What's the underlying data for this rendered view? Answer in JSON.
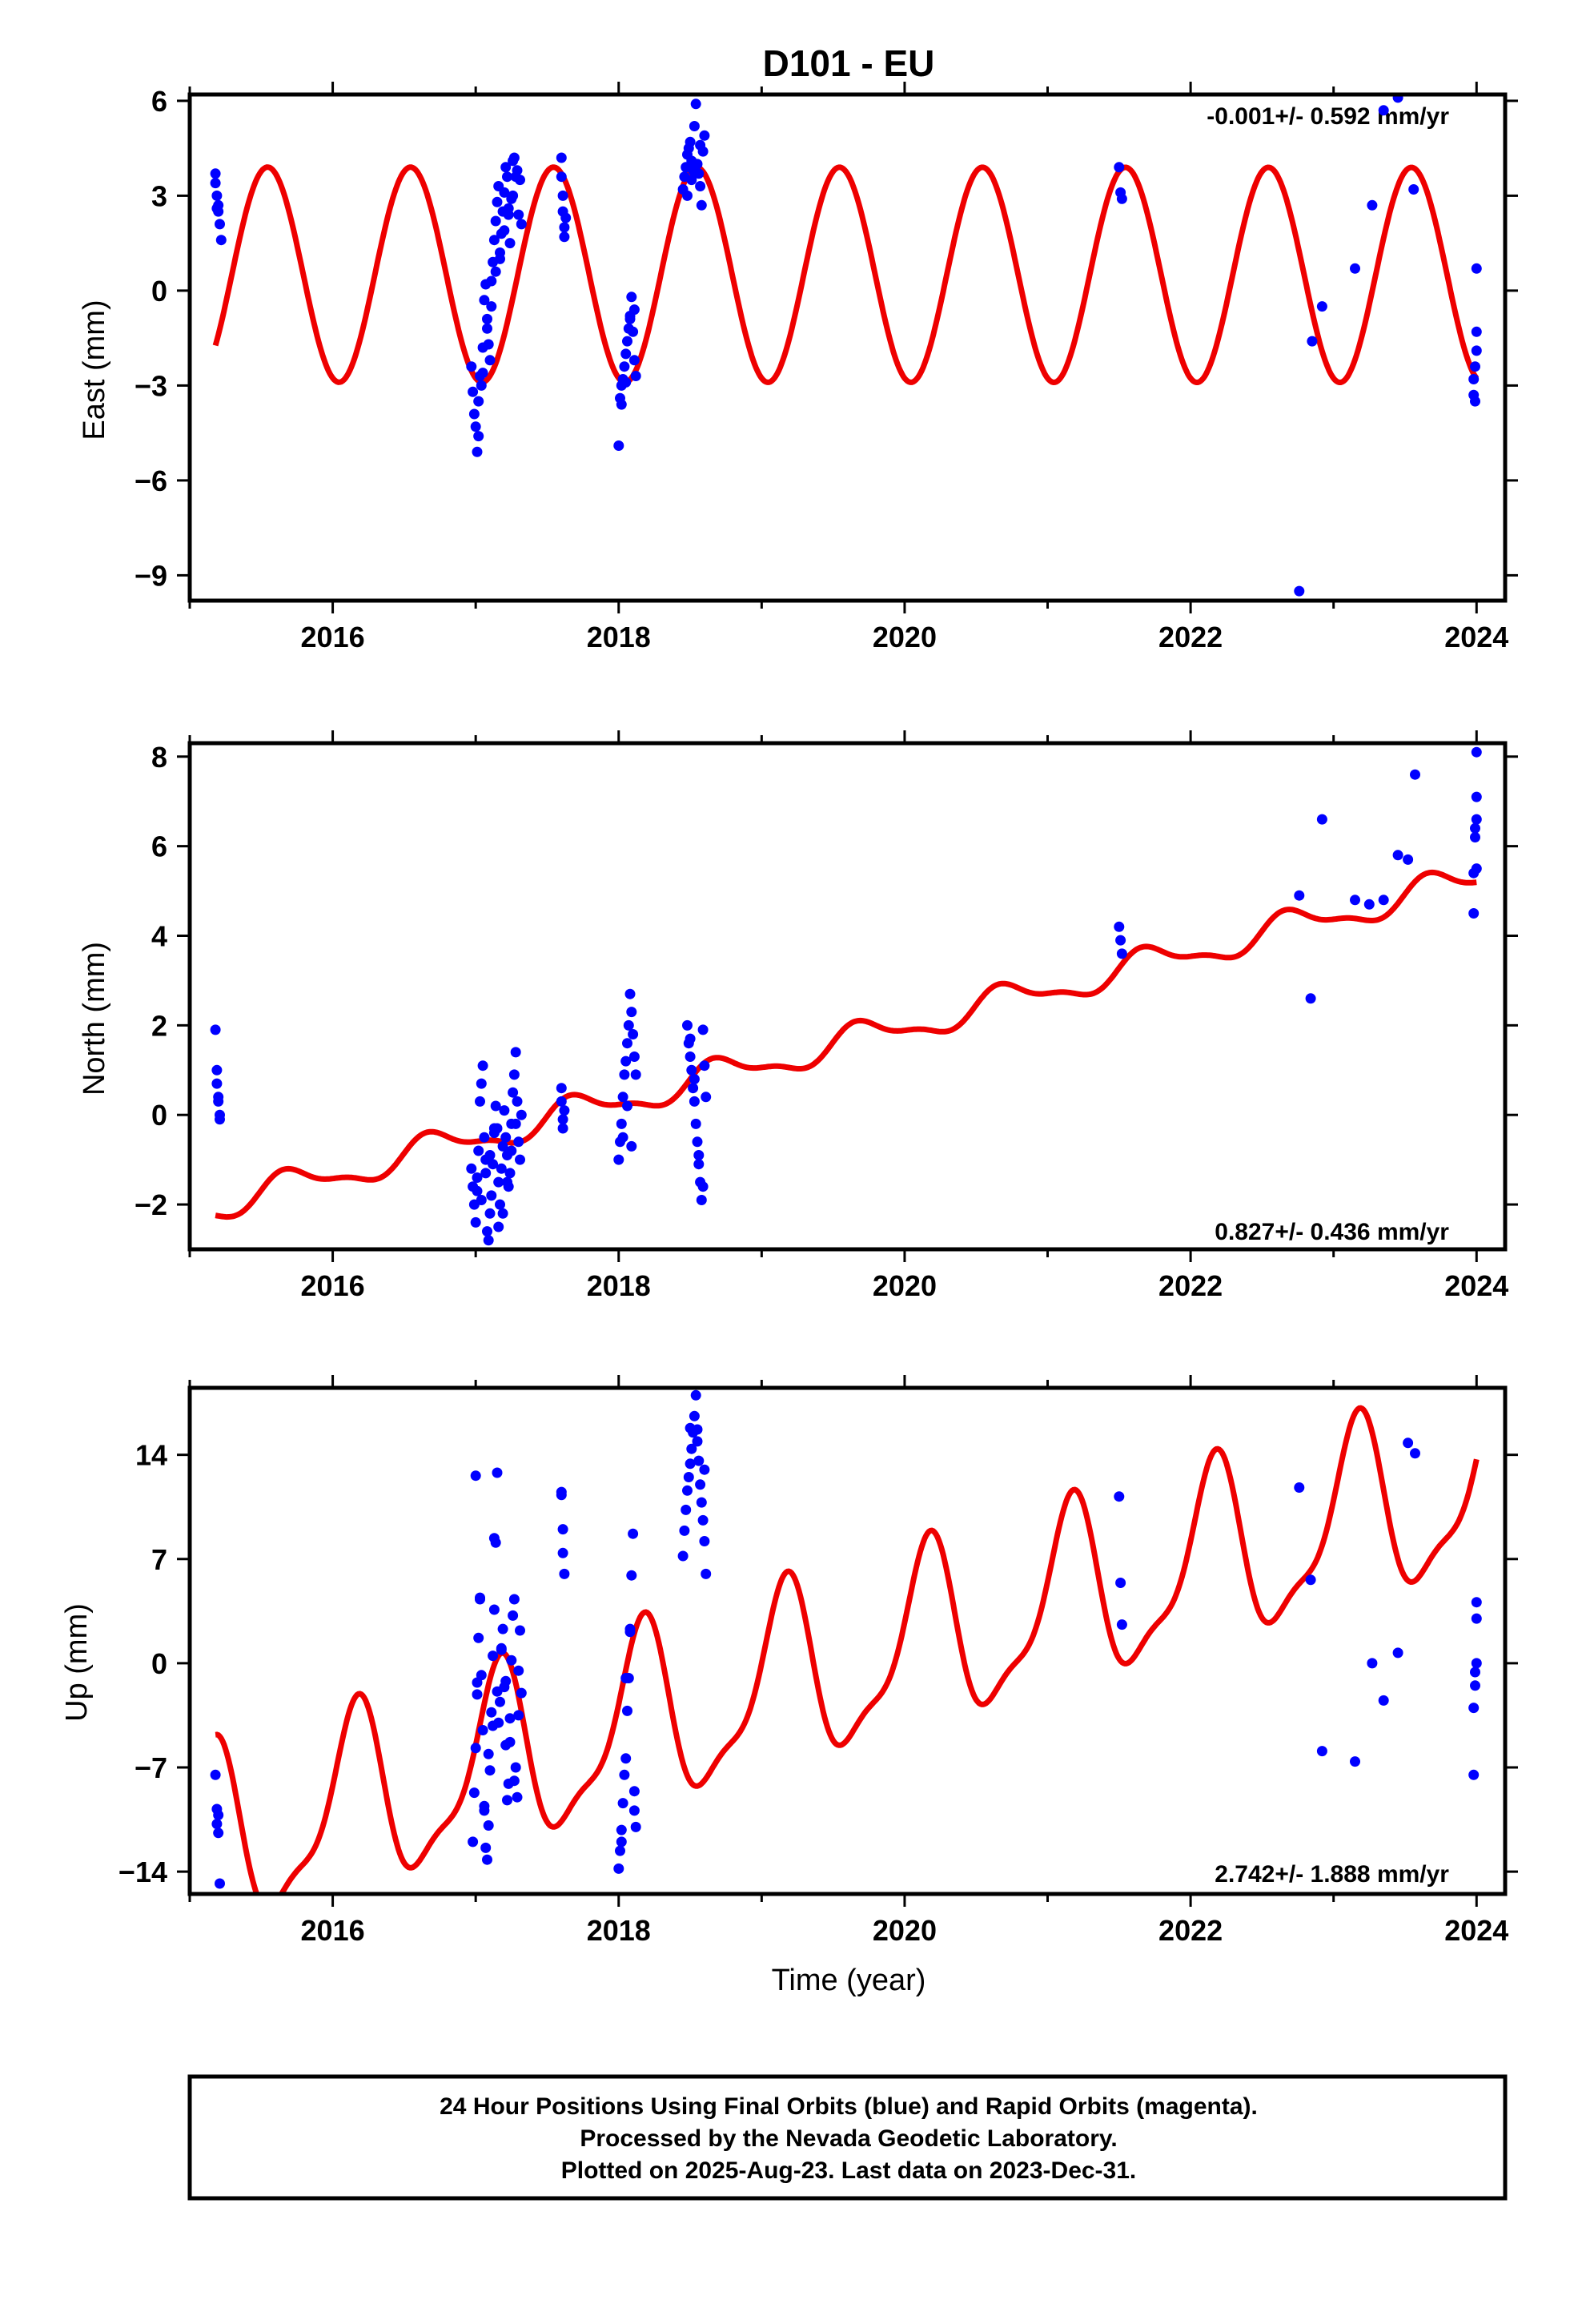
{
  "title": "D101 - EU",
  "xlabel": "Time (year)",
  "footer": [
    "24 Hour Positions Using Final Orbits (blue) and Rapid Orbits (magenta).",
    "Processed by the Nevada Geodetic Laboratory.",
    "Plotted on 2025-Aug-23. Last data on 2023-Dec-31."
  ],
  "colors": {
    "final_orbits": "#0000ff",
    "model": "#ee0000",
    "frame": "#000000"
  },
  "chart_data": [
    {
      "type": "scatter",
      "panel": "east",
      "ylabel": "East (mm)",
      "rate_text": "-0.001+/- 0.592 mm/yr",
      "xlim": [
        2015.0,
        2024.2
      ],
      "ylim": [
        -9.8,
        6.2
      ],
      "xticks": [
        2016,
        2018,
        2020,
        2022,
        2024
      ],
      "yticks": [
        6,
        3,
        0,
        -3,
        -6,
        -9
      ],
      "ytick_labels": [
        "6",
        "3",
        "0",
        "−3",
        "−6",
        "−9"
      ],
      "model": {
        "rate": -0.001,
        "offset": 0.5,
        "annual_amp": 3.4,
        "annual_phase": -1.85,
        "semiannual_amp": 0.0,
        "semiannual_phase": 0.0
      },
      "series": [
        {
          "x": [
            2015.18,
            2015.18,
            2015.19,
            2015.19,
            2015.2,
            2015.2,
            2015.21,
            2015.22,
            2016.97,
            2016.98,
            2016.99,
            2017.0,
            2017.01,
            2017.02,
            2017.03,
            2017.04,
            2017.05,
            2017.06,
            2017.07,
            2017.08,
            2017.09,
            2017.1,
            2017.11,
            2017.12,
            2017.13,
            2017.14,
            2017.15,
            2017.16,
            2017.17,
            2017.18,
            2017.19,
            2017.2,
            2017.21,
            2017.22,
            2017.23,
            2017.24,
            2017.25,
            2017.26,
            2017.27,
            2017.28,
            2017.29,
            2017.3,
            2017.31,
            2017.32,
            2017.02,
            2017.05,
            2017.08,
            2017.11,
            2017.14,
            2017.17,
            2017.2,
            2017.23,
            2017.26,
            2017.6,
            2017.6,
            2017.61,
            2017.61,
            2017.62,
            2017.62,
            2017.63,
            2018.0,
            2018.01,
            2018.02,
            2018.03,
            2018.04,
            2018.05,
            2018.06,
            2018.07,
            2018.08,
            2018.09,
            2018.1,
            2018.11,
            2018.12,
            2018.02,
            2018.05,
            2018.08,
            2018.11,
            2018.45,
            2018.46,
            2018.47,
            2018.48,
            2018.49,
            2018.5,
            2018.51,
            2018.52,
            2018.53,
            2018.54,
            2018.55,
            2018.56,
            2018.57,
            2018.58,
            2018.59,
            2018.6,
            2018.48,
            2018.51,
            2018.54,
            2018.57,
            2021.5,
            2021.51,
            2021.52,
            2022.76,
            2022.85,
            2022.92,
            2023.15,
            2023.27,
            2023.35,
            2023.45,
            2023.56,
            2023.98,
            2023.98,
            2023.99,
            2023.99,
            2024.0,
            2024.0,
            2024.0
          ],
          "y": [
            3.7,
            3.4,
            3.0,
            2.6,
            2.5,
            2.7,
            2.1,
            1.6,
            -2.4,
            -3.2,
            -3.9,
            -4.3,
            -5.1,
            -3.5,
            -2.7,
            -3.0,
            -1.8,
            -0.3,
            0.2,
            -0.9,
            -1.7,
            -2.2,
            0.3,
            0.9,
            1.6,
            2.2,
            2.8,
            3.3,
            1.2,
            1.8,
            2.5,
            3.1,
            3.9,
            3.6,
            2.4,
            1.5,
            2.9,
            4.1,
            4.2,
            3.6,
            3.8,
            2.4,
            3.5,
            2.1,
            -4.6,
            -2.6,
            -1.2,
            -0.5,
            0.6,
            1.0,
            1.9,
            2.6,
            3.0,
            4.2,
            3.6,
            3.0,
            2.5,
            2.0,
            1.7,
            2.3,
            -4.9,
            -3.4,
            -3.6,
            -2.8,
            -2.4,
            -2.0,
            -1.6,
            -1.2,
            -0.8,
            -0.2,
            -1.3,
            -2.2,
            -2.7,
            -3.0,
            -2.9,
            -0.9,
            -0.6,
            3.2,
            3.6,
            3.9,
            4.3,
            4.5,
            4.7,
            4.1,
            3.8,
            5.2,
            5.9,
            4.0,
            3.7,
            3.3,
            2.7,
            4.4,
            4.9,
            3.0,
            3.5,
            4.0,
            4.6,
            3.9,
            3.1,
            2.9,
            -9.5,
            -1.6,
            -0.5,
            0.7,
            2.7,
            5.7,
            6.1,
            3.2,
            -2.8,
            -3.3,
            -3.5,
            -2.4,
            -1.9,
            -1.3,
            0.7
          ]
        }
      ]
    },
    {
      "type": "scatter",
      "panel": "north",
      "ylabel": "North (mm)",
      "rate_text": "0.827+/- 0.436 mm/yr",
      "xlim": [
        2015.0,
        2024.2
      ],
      "ylim": [
        -3.0,
        8.3
      ],
      "xticks": [
        2016,
        2018,
        2020,
        2022,
        2024
      ],
      "yticks": [
        8,
        6,
        4,
        2,
        0,
        -2
      ],
      "ytick_labels": [
        "8",
        "6",
        "4",
        "2",
        "0",
        "−2"
      ],
      "model": {
        "rate": 0.827,
        "offset": 1.55,
        "annual_amp": 0.32,
        "annual_phase": -2.9,
        "semiannual_amp": 0.12,
        "semiannual_phase": 0.0
      },
      "series": [
        {
          "x": [
            2015.18,
            2015.19,
            2015.19,
            2015.2,
            2015.2,
            2015.21,
            2015.21,
            2016.97,
            2016.98,
            2016.99,
            2017.0,
            2017.01,
            2017.02,
            2017.03,
            2017.04,
            2017.05,
            2017.06,
            2017.07,
            2017.08,
            2017.09,
            2017.1,
            2017.11,
            2017.12,
            2017.13,
            2017.14,
            2017.15,
            2017.16,
            2017.17,
            2017.18,
            2017.19,
            2017.2,
            2017.21,
            2017.22,
            2017.23,
            2017.24,
            2017.25,
            2017.26,
            2017.27,
            2017.28,
            2017.29,
            2017.3,
            2017.31,
            2017.32,
            2017.01,
            2017.04,
            2017.07,
            2017.1,
            2017.13,
            2017.16,
            2017.19,
            2017.22,
            2017.25,
            2017.28,
            2017.6,
            2017.6,
            2017.61,
            2017.61,
            2017.62,
            2018.0,
            2018.01,
            2018.02,
            2018.03,
            2018.04,
            2018.05,
            2018.06,
            2018.07,
            2018.08,
            2018.09,
            2018.1,
            2018.11,
            2018.12,
            2018.03,
            2018.06,
            2018.09,
            2018.48,
            2018.49,
            2018.5,
            2018.51,
            2018.52,
            2018.53,
            2018.54,
            2018.55,
            2018.56,
            2018.57,
            2018.58,
            2018.59,
            2018.6,
            2018.61,
            2018.5,
            2018.53,
            2018.56,
            2018.59,
            2021.5,
            2021.51,
            2021.52,
            2022.76,
            2022.84,
            2022.92,
            2023.15,
            2023.25,
            2023.35,
            2023.45,
            2023.52,
            2023.57,
            2023.98,
            2023.98,
            2023.99,
            2023.99,
            2024.0,
            2024.0,
            2024.0,
            2024.0
          ],
          "y": [
            1.9,
            1.0,
            0.7,
            0.3,
            0.4,
            -0.1,
            0.0,
            -1.2,
            -1.6,
            -2.0,
            -2.4,
            -1.4,
            -0.8,
            0.3,
            0.7,
            1.1,
            -0.5,
            -1.0,
            -2.6,
            -2.8,
            -2.2,
            -1.8,
            -1.1,
            -0.4,
            0.2,
            -0.3,
            -1.5,
            -2.0,
            -1.2,
            -0.7,
            0.1,
            -0.5,
            -0.9,
            -1.6,
            -1.3,
            -0.2,
            0.5,
            0.9,
            1.4,
            0.3,
            -0.6,
            -1.0,
            0.0,
            -1.7,
            -1.9,
            -1.3,
            -0.9,
            -0.3,
            -2.5,
            -2.2,
            -1.5,
            -0.8,
            -0.2,
            0.6,
            0.3,
            -0.1,
            -0.3,
            0.1,
            -1.0,
            -0.6,
            -0.2,
            0.4,
            0.9,
            1.2,
            1.6,
            2.0,
            2.7,
            2.3,
            1.8,
            1.3,
            0.9,
            -0.5,
            0.2,
            -0.7,
            2.0,
            1.6,
            1.3,
            1.0,
            0.6,
            0.3,
            -0.2,
            -0.6,
            -1.1,
            -1.5,
            -1.9,
            1.9,
            1.1,
            0.4,
            1.7,
            0.8,
            -0.9,
            -1.6,
            4.2,
            3.9,
            3.6,
            4.9,
            2.6,
            6.6,
            4.8,
            4.7,
            4.8,
            5.8,
            5.7,
            7.6,
            4.5,
            5.4,
            6.2,
            6.4,
            6.6,
            7.1,
            8.1,
            5.5
          ]
        }
      ]
    },
    {
      "type": "scatter",
      "panel": "up",
      "ylabel": "Up (mm)",
      "rate_text": "2.742+/- 1.888 mm/yr",
      "xlim": [
        2015.0,
        2024.2
      ],
      "ylim": [
        -15.5,
        18.5
      ],
      "xticks": [
        2016,
        2018,
        2020,
        2022,
        2024
      ],
      "yticks": [
        14,
        7,
        0,
        -7,
        -14
      ],
      "ytick_labels": [
        "14",
        "7",
        "0",
        "−7",
        "−14"
      ],
      "model": {
        "rate": 2.742,
        "offset": -0.4,
        "annual_amp": 5.8,
        "annual_phase": 0.6,
        "semiannual_amp": 1.8,
        "semiannual_phase": -1.0
      },
      "series": [
        {
          "x": [
            2015.18,
            2015.19,
            2015.19,
            2015.2,
            2015.2,
            2015.21,
            2016.98,
            2016.99,
            2017.0,
            2017.01,
            2017.02,
            2017.03,
            2017.04,
            2017.05,
            2017.06,
            2017.07,
            2017.08,
            2017.09,
            2017.1,
            2017.11,
            2017.12,
            2017.13,
            2017.14,
            2017.15,
            2017.16,
            2017.17,
            2017.18,
            2017.19,
            2017.2,
            2017.21,
            2017.22,
            2017.23,
            2017.24,
            2017.25,
            2017.26,
            2017.27,
            2017.28,
            2017.29,
            2017.3,
            2017.31,
            2017.32,
            2017.0,
            2017.03,
            2017.06,
            2017.09,
            2017.12,
            2017.15,
            2017.18,
            2017.21,
            2017.24,
            2017.27,
            2017.3,
            2017.01,
            2017.13,
            2017.6,
            2017.6,
            2017.61,
            2017.61,
            2017.62,
            2018.0,
            2018.01,
            2018.02,
            2018.03,
            2018.04,
            2018.05,
            2018.06,
            2018.07,
            2018.08,
            2018.09,
            2018.1,
            2018.11,
            2018.12,
            2018.02,
            2018.05,
            2018.08,
            2018.11,
            2018.45,
            2018.46,
            2018.47,
            2018.48,
            2018.49,
            2018.5,
            2018.51,
            2018.52,
            2018.53,
            2018.54,
            2018.55,
            2018.56,
            2018.57,
            2018.58,
            2018.59,
            2018.6,
            2018.61,
            2018.5,
            2018.55,
            2018.6,
            2021.5,
            2021.51,
            2021.52,
            2022.76,
            2022.84,
            2022.92,
            2023.15,
            2023.27,
            2023.35,
            2023.45,
            2023.52,
            2023.57,
            2023.98,
            2023.98,
            2023.99,
            2023.99,
            2024.0,
            2024.0,
            2024.0
          ],
          "y": [
            -7.5,
            -9.8,
            -10.8,
            -11.4,
            -10.2,
            -14.8,
            -12.0,
            -8.7,
            -5.7,
            -2.1,
            1.7,
            4.3,
            -0.8,
            -4.5,
            -9.6,
            -12.4,
            -13.2,
            -10.9,
            -7.2,
            -3.3,
            0.5,
            3.6,
            8.1,
            12.8,
            -4.0,
            -2.6,
            0.9,
            2.3,
            -1.6,
            -5.5,
            -9.2,
            -8.1,
            -3.7,
            0.2,
            3.2,
            4.3,
            -7.0,
            -9.0,
            -0.5,
            2.2,
            -2.0,
            12.6,
            4.4,
            -9.9,
            -6.1,
            -4.2,
            -1.9,
            1.0,
            -1.2,
            -5.3,
            -7.9,
            -3.5,
            -1.3,
            8.4,
            11.5,
            11.3,
            9.0,
            7.4,
            6.0,
            -13.8,
            -12.6,
            -11.2,
            -9.4,
            -7.5,
            -6.4,
            -3.2,
            -1.0,
            2.3,
            5.9,
            8.7,
            -8.6,
            -11.0,
            -12.0,
            -1.0,
            2.1,
            -9.9,
            7.2,
            8.9,
            10.3,
            11.6,
            12.5,
            13.4,
            14.4,
            15.5,
            16.6,
            18.0,
            15.7,
            13.6,
            12.0,
            10.8,
            9.6,
            8.2,
            6.0,
            15.8,
            14.9,
            13.0,
            11.2,
            5.4,
            2.6,
            11.8,
            5.6,
            -5.9,
            -6.6,
            0.0,
            -2.5,
            0.7,
            14.8,
            14.1,
            -7.5,
            -3.0,
            -1.5,
            -0.6,
            3.0,
            4.1,
            0.0
          ]
        }
      ]
    }
  ]
}
